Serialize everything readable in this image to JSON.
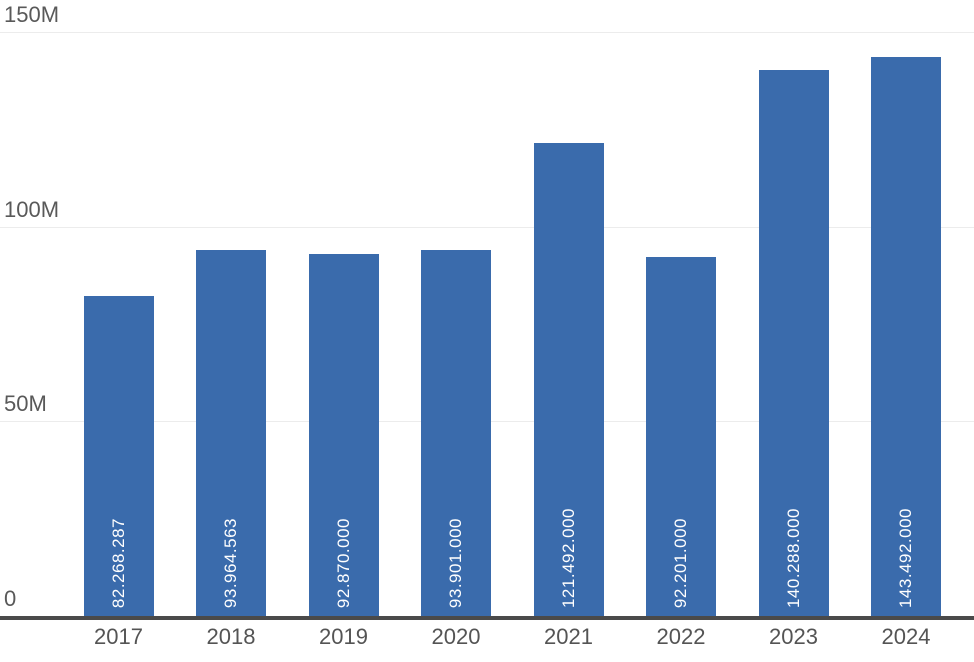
{
  "chart_data": {
    "type": "bar",
    "categories": [
      "2017",
      "2018",
      "2019",
      "2020",
      "2021",
      "2022",
      "2023",
      "2024"
    ],
    "values": [
      82268287,
      93964563,
      92870000,
      93901000,
      121492000,
      92201000,
      140288000,
      143492000
    ],
    "value_labels": [
      "82.268.287",
      "93.964.563",
      "92.870.000",
      "93.901.000",
      "121.492.000",
      "92.201.000",
      "140.288.000",
      "143.492.000"
    ],
    "ylim": [
      0,
      150000000
    ],
    "yticks": [
      {
        "value": 0,
        "label": "0"
      },
      {
        "value": 50000000,
        "label": "50M"
      },
      {
        "value": 100000000,
        "label": "100M"
      },
      {
        "value": 150000000,
        "label": "150M"
      }
    ],
    "grid": true,
    "legend": false,
    "value_label_position": "inside-bottom-rotated",
    "colors": {
      "bar": "#3a6bac",
      "value_label": "#ffffff",
      "axis_line": "#4a4a4a",
      "gridline": "#ececec",
      "ytick_label": "#595959",
      "xtick_label": "#545454",
      "background": "#ffffff"
    }
  }
}
